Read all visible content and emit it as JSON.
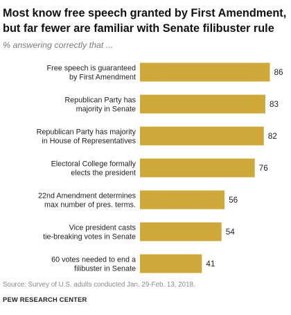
{
  "title": "Most know free speech granted by First Amendment, but far fewer are familiar with Senate filibuster rule",
  "subtitle": "% answering correctly that ...",
  "source": "Source: Survey of U.S. adults conducted Jan. 29-Feb. 13, 2018.",
  "org": "PEW RESEARCH CENTER",
  "colors": {
    "bar": "#cfa83a"
  },
  "chart_data": {
    "type": "bar",
    "orientation": "horizontal",
    "categories": [
      [
        "Free speech is guaranteed",
        "by First Amendment"
      ],
      [
        "Republican Party has",
        "majority in Senate"
      ],
      [
        "Republican Party has majority",
        "in House of Representatives"
      ],
      [
        "Electoral College formally",
        "elects the president"
      ],
      [
        "22nd Amendment determines",
        "max number of pres. terms."
      ],
      [
        "Vice president casts",
        "tie-breaking votes in Senate"
      ],
      [
        "60 votes needed to end a",
        "filibuster in Senate"
      ]
    ],
    "values": [
      86,
      83,
      82,
      76,
      56,
      54,
      41
    ],
    "xlim": [
      0,
      100
    ],
    "grid": false,
    "data_labels": true
  }
}
